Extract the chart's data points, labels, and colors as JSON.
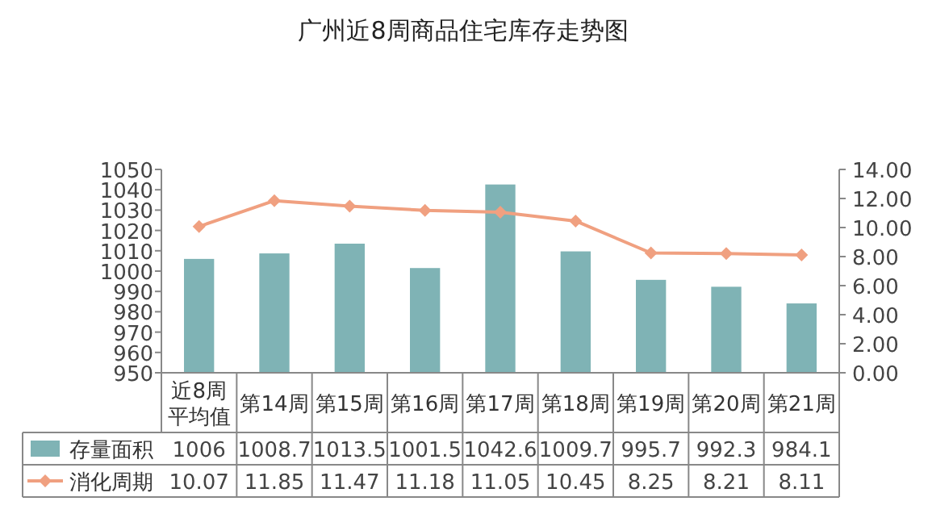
{
  "chart_data": {
    "type": "bar",
    "title": "广州近8周商品住宅库存走势图",
    "categories": [
      "近8周平均值",
      "第14周",
      "第15周",
      "第16周",
      "第17周",
      "第18周",
      "第19周",
      "第20周",
      "第21周"
    ],
    "series": [
      {
        "name": "存量面积",
        "color": "#7fb3b5",
        "values": [
          1006,
          1008.7,
          1013.5,
          1001.5,
          1042.6,
          1009.7,
          995.7,
          992.3,
          984.1
        ]
      },
      {
        "name": "消化周期",
        "type": "line",
        "axis": "y2",
        "color": "#f0a080",
        "values": [
          10.07,
          11.85,
          11.47,
          11.18,
          11.05,
          10.45,
          8.25,
          8.21,
          8.11
        ]
      }
    ],
    "ylim": [
      950,
      1050
    ],
    "yticks": [
      950,
      960,
      970,
      980,
      990,
      1000,
      1010,
      1020,
      1030,
      1040,
      1050
    ],
    "y2lim": [
      0,
      14
    ],
    "y2ticks": [
      {
        "value": 0,
        "label": "0.00"
      },
      {
        "value": 2,
        "label": "2.00"
      },
      {
        "value": 4,
        "label": "4.00"
      },
      {
        "value": 6,
        "label": "6.00"
      },
      {
        "value": 8,
        "label": "8.00"
      },
      {
        "value": 10,
        "label": "10.00"
      },
      {
        "value": 12,
        "label": "12.00"
      },
      {
        "value": 14,
        "label": "14.00"
      }
    ],
    "marker": "diamond",
    "legend": "bottom left",
    "data_labels": true,
    "grid": false
  }
}
